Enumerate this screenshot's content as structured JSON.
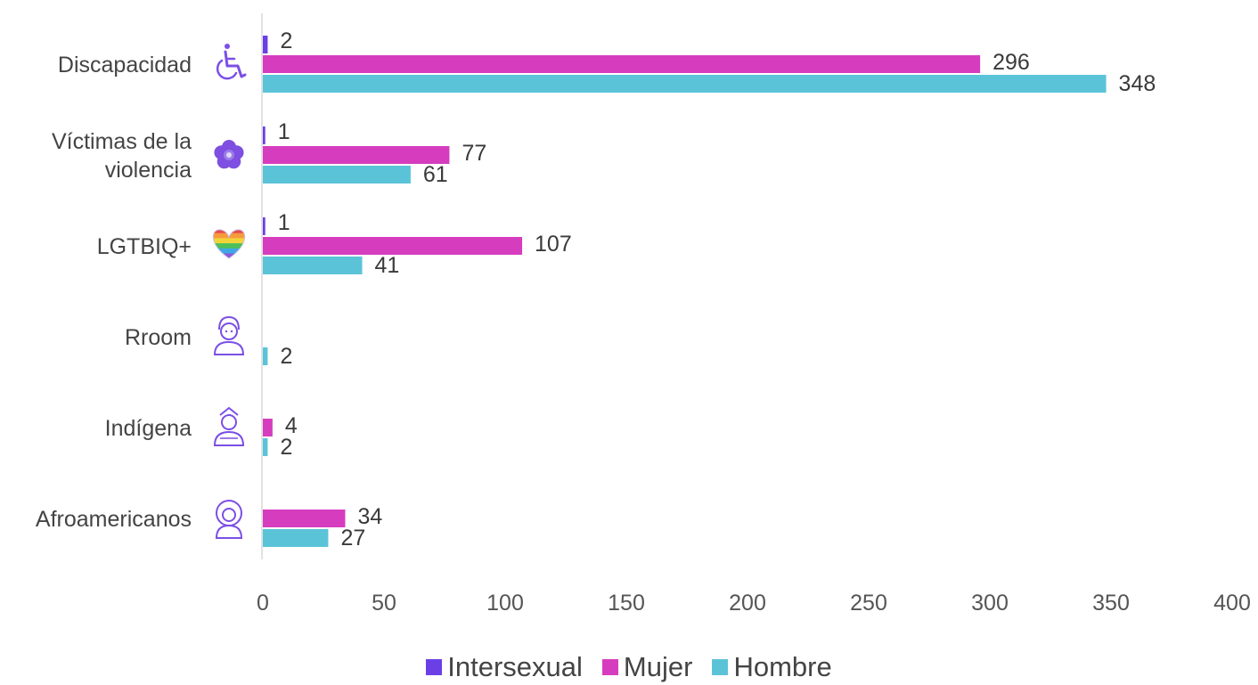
{
  "chart_data": {
    "type": "bar",
    "orientation": "horizontal",
    "categories": [
      "Discapacidad",
      "Víctimas de la violencia",
      "LGTBIQ+",
      "Rroom",
      "Indígena",
      "Afroamericanos"
    ],
    "category_lines": [
      [
        "Discapacidad"
      ],
      [
        "Víctimas de la",
        "violencia"
      ],
      [
        "LGTBIQ+"
      ],
      [
        "Rroom"
      ],
      [
        "Indígena"
      ],
      [
        "Afroamericanos"
      ]
    ],
    "category_icons": [
      "wheelchair-icon",
      "flower-icon",
      "rainbow-heart-icon",
      "person-outline-icon",
      "indigenous-person-icon",
      "afro-person-icon"
    ],
    "series": [
      {
        "name": "Intersexual",
        "color": "#6B3FE6",
        "values": [
          2,
          1,
          1,
          null,
          null,
          null
        ]
      },
      {
        "name": "Mujer",
        "color": "#D63DBE",
        "values": [
          296,
          77,
          107,
          null,
          4,
          34
        ]
      },
      {
        "name": "Hombre",
        "color": "#5BC3D8",
        "values": [
          348,
          61,
          41,
          2,
          2,
          27
        ]
      }
    ],
    "xlim": [
      0,
      400
    ],
    "xticks": [
      0,
      50,
      100,
      150,
      200,
      250,
      300,
      350,
      400
    ],
    "grid": false,
    "legend_position": "bottom",
    "title": "",
    "xlabel": "",
    "ylabel": ""
  },
  "legend": {
    "items": [
      {
        "label": "Intersexual",
        "color": "#6B3FE6"
      },
      {
        "label": "Mujer",
        "color": "#D63DBE"
      },
      {
        "label": "Hombre",
        "color": "#5BC3D8"
      }
    ]
  }
}
